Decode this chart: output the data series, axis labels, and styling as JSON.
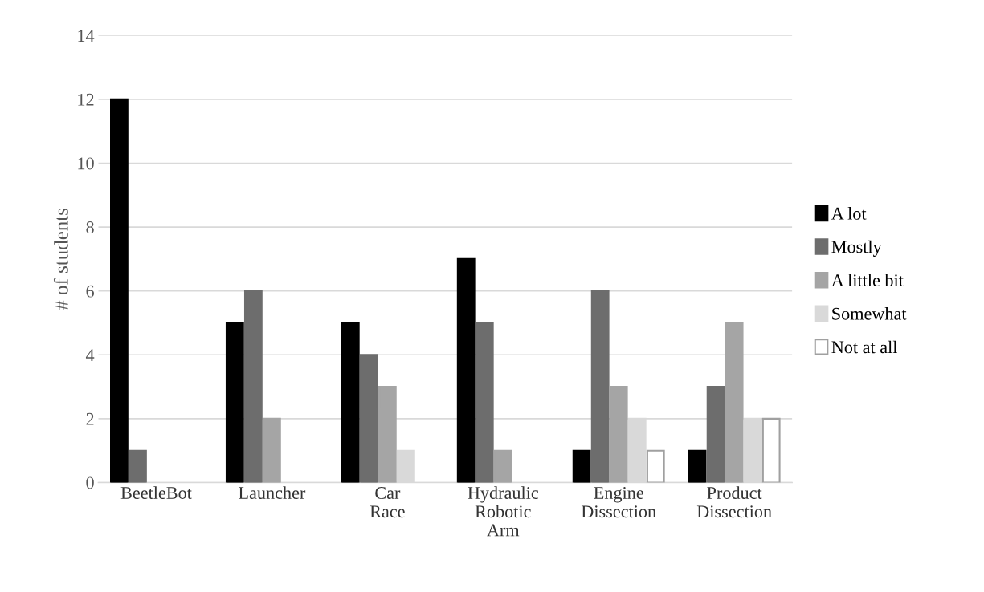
{
  "chart_data": {
    "type": "bar",
    "ylabel": "# of students",
    "categories": [
      "BeetleBot",
      "Launcher",
      "Car\nRace",
      "Hydraulic\nRobotic\nArm",
      "Engine\nDissection",
      "Product\nDissection"
    ],
    "series": [
      {
        "name": "A lot",
        "color": "#000000",
        "values": [
          12,
          5,
          5,
          7,
          1,
          1
        ]
      },
      {
        "name": "Mostly",
        "color": "#6d6d6d",
        "values": [
          1,
          6,
          4,
          5,
          6,
          3
        ]
      },
      {
        "name": "A little bit",
        "color": "#a5a5a5",
        "values": [
          0,
          2,
          3,
          1,
          3,
          5
        ]
      },
      {
        "name": "Somewhat",
        "color": "#d9d9d9",
        "values": [
          0,
          0,
          1,
          0,
          2,
          2
        ]
      },
      {
        "name": "Not at all",
        "color": "#ffffff",
        "values": [
          0,
          0,
          0,
          0,
          1,
          2
        ]
      }
    ],
    "ylim": [
      0,
      14
    ],
    "yticks": [
      0,
      2,
      4,
      6,
      8,
      10,
      12,
      14
    ],
    "grid": "y",
    "legend": "right"
  }
}
